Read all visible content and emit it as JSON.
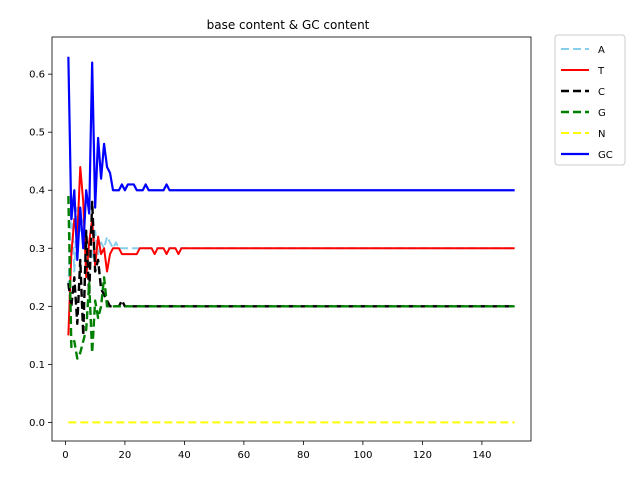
{
  "chart_data": {
    "type": "line",
    "title": "base content & GC content",
    "xlabel": "",
    "ylabel": "",
    "xlim": [
      -4.5,
      156.5
    ],
    "ylim": [
      -0.032,
      0.664
    ],
    "xticks": [
      0,
      20,
      40,
      60,
      80,
      100,
      120,
      140
    ],
    "yticks": [
      0.0,
      0.1,
      0.2,
      0.3,
      0.4,
      0.5,
      0.6
    ],
    "ytick_labels": [
      "0.0",
      "0.1",
      "0.2",
      "0.3",
      "0.4",
      "0.5",
      "0.6"
    ],
    "grid": false,
    "legend_position": "outside-top-right",
    "x": [
      1,
      2,
      3,
      4,
      5,
      6,
      7,
      8,
      9,
      10,
      11,
      12,
      13,
      14,
      15,
      16,
      17,
      18,
      19,
      20,
      21,
      22,
      23,
      24,
      25,
      26,
      27,
      28,
      29,
      30,
      31,
      32,
      33,
      34,
      35,
      36,
      37,
      38,
      39,
      40,
      41,
      42,
      43,
      44,
      45,
      46,
      47,
      48,
      49,
      50,
      51,
      52,
      53,
      54,
      55,
      56,
      57,
      58,
      59,
      60,
      61,
      62,
      63,
      64,
      65,
      66,
      67,
      68,
      69,
      70,
      71,
      72,
      73,
      74,
      75,
      76,
      77,
      78,
      79,
      80,
      81,
      82,
      83,
      84,
      85,
      86,
      87,
      88,
      89,
      90,
      91,
      92,
      93,
      94,
      95,
      96,
      97,
      98,
      99,
      100,
      101,
      102,
      103,
      104,
      105,
      106,
      107,
      108,
      109,
      110,
      111,
      112,
      113,
      114,
      115,
      116,
      117,
      118,
      119,
      120,
      121,
      122,
      123,
      124,
      125,
      126,
      127,
      128,
      129,
      130,
      131,
      132,
      133,
      134,
      135,
      136,
      137,
      138,
      139,
      140,
      141,
      142,
      143,
      144,
      145,
      146,
      147,
      148,
      149,
      150,
      151
    ],
    "series": [
      {
        "name": "A",
        "color": "#87ceeb",
        "dash": "8,4",
        "width": 2,
        "values": [
          0.23,
          0.39,
          0.26,
          0.37,
          0.33,
          0.35,
          0.31,
          0.3,
          0.28,
          0.33,
          0.29,
          0.31,
          0.3,
          0.32,
          0.31,
          0.3,
          0.31,
          0.3,
          0.3,
          0.3,
          0.3,
          0.3,
          0.3,
          0.3,
          0.3,
          0.3,
          0.3,
          0.3,
          0.3,
          0.3,
          0.3,
          0.3,
          0.3,
          0.3,
          0.3,
          0.3,
          0.3,
          0.3,
          0.3,
          0.3,
          0.3,
          0.3,
          0.3,
          0.3,
          0.3,
          0.3,
          0.3,
          0.3,
          0.3,
          0.3,
          0.3,
          0.3,
          0.3,
          0.3,
          0.3,
          0.3,
          0.3,
          0.3,
          0.3,
          0.3,
          0.3,
          0.3,
          0.3,
          0.3,
          0.3,
          0.3,
          0.3,
          0.3,
          0.3,
          0.3,
          0.3,
          0.3,
          0.3,
          0.3,
          0.3,
          0.3,
          0.3,
          0.3,
          0.3,
          0.3,
          0.3,
          0.3,
          0.3,
          0.3,
          0.3,
          0.3,
          0.3,
          0.3,
          0.3,
          0.3,
          0.3,
          0.3,
          0.3,
          0.3,
          0.3,
          0.3,
          0.3,
          0.3,
          0.3,
          0.3,
          0.3,
          0.3,
          0.3,
          0.3,
          0.3,
          0.3,
          0.3,
          0.3,
          0.3,
          0.3,
          0.3,
          0.3,
          0.3,
          0.3,
          0.3,
          0.3,
          0.3,
          0.3,
          0.3,
          0.3,
          0.3,
          0.3,
          0.3,
          0.3,
          0.3,
          0.3,
          0.3,
          0.3,
          0.3,
          0.3,
          0.3,
          0.3,
          0.3,
          0.3,
          0.3,
          0.3,
          0.3,
          0.3,
          0.3,
          0.3,
          0.3,
          0.3,
          0.3,
          0.3,
          0.3,
          0.3,
          0.3,
          0.3,
          0.3,
          0.3,
          0.3
        ]
      },
      {
        "name": "T",
        "color": "#ff0000",
        "dash": "",
        "width": 2,
        "values": [
          0.15,
          0.29,
          0.35,
          0.32,
          0.44,
          0.38,
          0.25,
          0.31,
          0.35,
          0.27,
          0.32,
          0.29,
          0.3,
          0.26,
          0.29,
          0.3,
          0.3,
          0.3,
          0.29,
          0.29,
          0.29,
          0.29,
          0.29,
          0.29,
          0.3,
          0.3,
          0.3,
          0.3,
          0.3,
          0.29,
          0.3,
          0.3,
          0.3,
          0.29,
          0.3,
          0.3,
          0.3,
          0.29,
          0.3,
          0.3,
          0.3,
          0.3,
          0.3,
          0.3,
          0.3,
          0.3,
          0.3,
          0.3,
          0.3,
          0.3,
          0.3,
          0.3,
          0.3,
          0.3,
          0.3,
          0.3,
          0.3,
          0.3,
          0.3,
          0.3,
          0.3,
          0.3,
          0.3,
          0.3,
          0.3,
          0.3,
          0.3,
          0.3,
          0.3,
          0.3,
          0.3,
          0.3,
          0.3,
          0.3,
          0.3,
          0.3,
          0.3,
          0.3,
          0.3,
          0.3,
          0.3,
          0.3,
          0.3,
          0.3,
          0.3,
          0.3,
          0.3,
          0.3,
          0.3,
          0.3,
          0.3,
          0.3,
          0.3,
          0.3,
          0.3,
          0.3,
          0.3,
          0.3,
          0.3,
          0.3,
          0.3,
          0.3,
          0.3,
          0.3,
          0.3,
          0.3,
          0.3,
          0.3,
          0.3,
          0.3,
          0.3,
          0.3,
          0.3,
          0.3,
          0.3,
          0.3,
          0.3,
          0.3,
          0.3,
          0.3,
          0.3,
          0.3,
          0.3,
          0.3,
          0.3,
          0.3,
          0.3,
          0.3,
          0.3,
          0.3,
          0.3,
          0.3,
          0.3,
          0.3,
          0.3,
          0.3,
          0.3,
          0.3,
          0.3,
          0.3,
          0.3,
          0.3,
          0.3,
          0.3,
          0.3,
          0.3,
          0.3,
          0.3,
          0.3,
          0.3,
          0.3
        ]
      },
      {
        "name": "C",
        "color": "#000000",
        "dash": "8,4",
        "width": 2.4,
        "values": [
          0.24,
          0.2,
          0.25,
          0.17,
          0.28,
          0.15,
          0.33,
          0.22,
          0.38,
          0.26,
          0.28,
          0.23,
          0.22,
          0.21,
          0.2,
          0.2,
          0.2,
          0.2,
          0.21,
          0.2,
          0.2,
          0.2,
          0.2,
          0.2,
          0.2,
          0.2,
          0.2,
          0.2,
          0.2,
          0.2,
          0.2,
          0.2,
          0.2,
          0.2,
          0.2,
          0.2,
          0.2,
          0.2,
          0.2,
          0.2,
          0.2,
          0.2,
          0.2,
          0.2,
          0.2,
          0.2,
          0.2,
          0.2,
          0.2,
          0.2,
          0.2,
          0.2,
          0.2,
          0.2,
          0.2,
          0.2,
          0.2,
          0.2,
          0.2,
          0.2,
          0.2,
          0.2,
          0.2,
          0.2,
          0.2,
          0.2,
          0.2,
          0.2,
          0.2,
          0.2,
          0.2,
          0.2,
          0.2,
          0.2,
          0.2,
          0.2,
          0.2,
          0.2,
          0.2,
          0.2,
          0.2,
          0.2,
          0.2,
          0.2,
          0.2,
          0.2,
          0.2,
          0.2,
          0.2,
          0.2,
          0.2,
          0.2,
          0.2,
          0.2,
          0.2,
          0.2,
          0.2,
          0.2,
          0.2,
          0.2,
          0.2,
          0.2,
          0.2,
          0.2,
          0.2,
          0.2,
          0.2,
          0.2,
          0.2,
          0.2,
          0.2,
          0.2,
          0.2,
          0.2,
          0.2,
          0.2,
          0.2,
          0.2,
          0.2,
          0.2,
          0.2,
          0.2,
          0.2,
          0.2,
          0.2,
          0.2,
          0.2,
          0.2,
          0.2,
          0.2,
          0.2,
          0.2,
          0.2,
          0.2,
          0.2,
          0.2,
          0.2,
          0.2,
          0.2,
          0.2,
          0.2,
          0.2,
          0.2,
          0.2,
          0.2,
          0.2,
          0.2,
          0.2,
          0.2,
          0.2,
          0.2
        ]
      },
      {
        "name": "G",
        "color": "#008000",
        "dash": "8,4",
        "width": 2.4,
        "values": [
          0.39,
          0.13,
          0.14,
          0.11,
          0.12,
          0.14,
          0.16,
          0.24,
          0.12,
          0.21,
          0.18,
          0.2,
          0.25,
          0.2,
          0.2,
          0.2,
          0.2,
          0.2,
          0.2,
          0.2,
          0.2,
          0.2,
          0.2,
          0.2,
          0.2,
          0.2,
          0.2,
          0.2,
          0.2,
          0.2,
          0.2,
          0.2,
          0.2,
          0.2,
          0.2,
          0.2,
          0.2,
          0.2,
          0.2,
          0.2,
          0.2,
          0.2,
          0.2,
          0.2,
          0.2,
          0.2,
          0.2,
          0.2,
          0.2,
          0.2,
          0.2,
          0.2,
          0.2,
          0.2,
          0.2,
          0.2,
          0.2,
          0.2,
          0.2,
          0.2,
          0.2,
          0.2,
          0.2,
          0.2,
          0.2,
          0.2,
          0.2,
          0.2,
          0.2,
          0.2,
          0.2,
          0.2,
          0.2,
          0.2,
          0.2,
          0.2,
          0.2,
          0.2,
          0.2,
          0.2,
          0.2,
          0.2,
          0.2,
          0.2,
          0.2,
          0.2,
          0.2,
          0.2,
          0.2,
          0.2,
          0.2,
          0.2,
          0.2,
          0.2,
          0.2,
          0.2,
          0.2,
          0.2,
          0.2,
          0.2,
          0.2,
          0.2,
          0.2,
          0.2,
          0.2,
          0.2,
          0.2,
          0.2,
          0.2,
          0.2,
          0.2,
          0.2,
          0.2,
          0.2,
          0.2,
          0.2,
          0.2,
          0.2,
          0.2,
          0.2,
          0.2,
          0.2,
          0.2,
          0.2,
          0.2,
          0.2,
          0.2,
          0.2,
          0.2,
          0.2,
          0.2,
          0.2,
          0.2,
          0.2,
          0.2,
          0.2,
          0.2,
          0.2,
          0.2,
          0.2,
          0.2,
          0.2,
          0.2,
          0.2,
          0.2,
          0.2,
          0.2,
          0.2,
          0.2,
          0.2,
          0.2
        ]
      },
      {
        "name": "N",
        "color": "#ffff00",
        "dash": "8,4",
        "width": 2,
        "values": [
          0.0,
          0.0,
          0.0,
          0.0,
          0.0,
          0.0,
          0.0,
          0.0,
          0.0,
          0.0,
          0.0,
          0.0,
          0.0,
          0.0,
          0.0,
          0.0,
          0.0,
          0.0,
          0.0,
          0.0,
          0.0,
          0.0,
          0.0,
          0.0,
          0.0,
          0.0,
          0.0,
          0.0,
          0.0,
          0.0,
          0.0,
          0.0,
          0.0,
          0.0,
          0.0,
          0.0,
          0.0,
          0.0,
          0.0,
          0.0,
          0.0,
          0.0,
          0.0,
          0.0,
          0.0,
          0.0,
          0.0,
          0.0,
          0.0,
          0.0,
          0.0,
          0.0,
          0.0,
          0.0,
          0.0,
          0.0,
          0.0,
          0.0,
          0.0,
          0.0,
          0.0,
          0.0,
          0.0,
          0.0,
          0.0,
          0.0,
          0.0,
          0.0,
          0.0,
          0.0,
          0.0,
          0.0,
          0.0,
          0.0,
          0.0,
          0.0,
          0.0,
          0.0,
          0.0,
          0.0,
          0.0,
          0.0,
          0.0,
          0.0,
          0.0,
          0.0,
          0.0,
          0.0,
          0.0,
          0.0,
          0.0,
          0.0,
          0.0,
          0.0,
          0.0,
          0.0,
          0.0,
          0.0,
          0.0,
          0.0,
          0.0,
          0.0,
          0.0,
          0.0,
          0.0,
          0.0,
          0.0,
          0.0,
          0.0,
          0.0,
          0.0,
          0.0,
          0.0,
          0.0,
          0.0,
          0.0,
          0.0,
          0.0,
          0.0,
          0.0,
          0.0,
          0.0,
          0.0,
          0.0,
          0.0,
          0.0,
          0.0,
          0.0,
          0.0,
          0.0,
          0.0,
          0.0,
          0.0,
          0.0,
          0.0,
          0.0,
          0.0,
          0.0,
          0.0,
          0.0,
          0.0,
          0.0,
          0.0,
          0.0,
          0.0,
          0.0,
          0.0,
          0.0,
          0.0,
          0.0,
          0.0
        ]
      },
      {
        "name": "GC",
        "color": "#0000ff",
        "dash": "",
        "width": 2.2,
        "values": [
          0.63,
          0.35,
          0.4,
          0.28,
          0.37,
          0.3,
          0.4,
          0.36,
          0.62,
          0.37,
          0.49,
          0.42,
          0.48,
          0.44,
          0.43,
          0.4,
          0.4,
          0.4,
          0.41,
          0.4,
          0.41,
          0.41,
          0.41,
          0.4,
          0.4,
          0.4,
          0.41,
          0.4,
          0.4,
          0.4,
          0.4,
          0.4,
          0.4,
          0.41,
          0.4,
          0.4,
          0.4,
          0.4,
          0.4,
          0.4,
          0.4,
          0.4,
          0.4,
          0.4,
          0.4,
          0.4,
          0.4,
          0.4,
          0.4,
          0.4,
          0.4,
          0.4,
          0.4,
          0.4,
          0.4,
          0.4,
          0.4,
          0.4,
          0.4,
          0.4,
          0.4,
          0.4,
          0.4,
          0.4,
          0.4,
          0.4,
          0.4,
          0.4,
          0.4,
          0.4,
          0.4,
          0.4,
          0.4,
          0.4,
          0.4,
          0.4,
          0.4,
          0.4,
          0.4,
          0.4,
          0.4,
          0.4,
          0.4,
          0.4,
          0.4,
          0.4,
          0.4,
          0.4,
          0.4,
          0.4,
          0.4,
          0.4,
          0.4,
          0.4,
          0.4,
          0.4,
          0.4,
          0.4,
          0.4,
          0.4,
          0.4,
          0.4,
          0.4,
          0.4,
          0.4,
          0.4,
          0.4,
          0.4,
          0.4,
          0.4,
          0.4,
          0.4,
          0.4,
          0.4,
          0.4,
          0.4,
          0.4,
          0.4,
          0.4,
          0.4,
          0.4,
          0.4,
          0.4,
          0.4,
          0.4,
          0.4,
          0.4,
          0.4,
          0.4,
          0.4,
          0.4,
          0.4,
          0.4,
          0.4,
          0.4,
          0.4,
          0.4,
          0.4,
          0.4,
          0.4,
          0.4,
          0.4,
          0.4,
          0.4,
          0.4,
          0.4,
          0.4,
          0.4,
          0.4,
          0.4,
          0.4
        ]
      }
    ]
  }
}
